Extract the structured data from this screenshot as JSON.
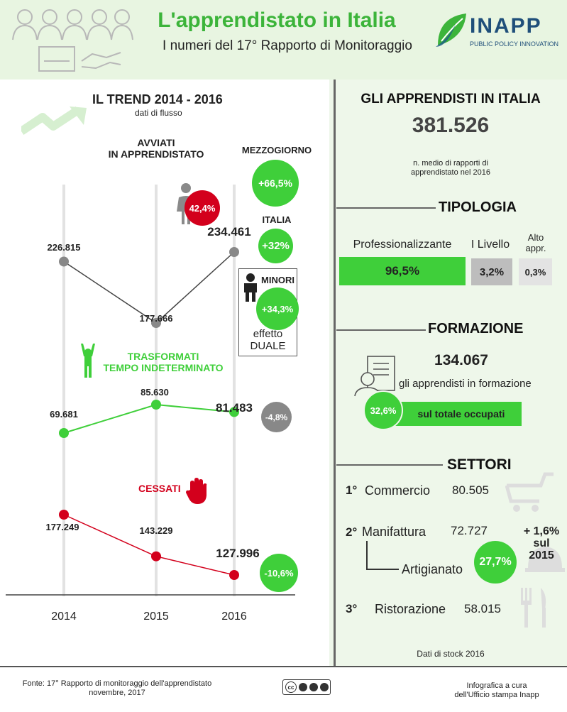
{
  "header": {
    "title": "L'apprendistato in Italia",
    "subtitle": "I numeri del 17° Rapporto di Monitoraggio",
    "logo_text": "INAPP",
    "logo_tag": "PUBLIC POLICY INNOVATION"
  },
  "trend": {
    "title": "IL TREND 2014 - 2016",
    "subtitle": "dati di flusso",
    "years": [
      "2014",
      "2015",
      "2016"
    ],
    "avviati": {
      "label_line1": "AVVIATI",
      "label_line2": "IN APPRENDISTATO",
      "values": [
        "226.815",
        "177.666",
        "234.461"
      ],
      "female_pct": "42,4%"
    },
    "mezzogiorno": {
      "label": "MEZZOGIORNO",
      "value": "+66,5%"
    },
    "italia": {
      "label": "ITALIA",
      "value": "+32%"
    },
    "minori": {
      "label": "MINORI",
      "value": "+34,3%",
      "note_line1": "effetto",
      "note_line2": "DUALE"
    },
    "trasformati": {
      "label_line1": "TRASFORMATI",
      "label_line2": "TEMPO INDETERMINATO",
      "values": [
        "69.681",
        "85.630",
        "81.483"
      ],
      "change": "-4,8%"
    },
    "cessati": {
      "label": "CESSATI",
      "values": [
        "177.249",
        "143.229",
        "127.996"
      ],
      "change": "-10,6%"
    }
  },
  "apprendisti": {
    "title": "GLI APPRENDISTI IN ITALIA",
    "total": "381.526",
    "note_line1": "n. medio di rapporti di",
    "note_line2": "apprendistato nel 2016"
  },
  "tipologia": {
    "title": "TIPOLOGIA",
    "items": [
      {
        "label": "Professionalizzante",
        "value": "96,5%",
        "color": "#3fcf3a"
      },
      {
        "label": "I Livello",
        "value": "3,2%",
        "color": "#bdbdbd"
      },
      {
        "label_line1": "Alto",
        "label_line2": "appr.",
        "value": "0,3%",
        "color": "#e3e3e3"
      }
    ]
  },
  "formazione": {
    "title": "FORMAZIONE",
    "value": "134.067",
    "desc": "gli apprendisti in formazione",
    "pct": "32,6%",
    "bar_label": "sul totale occupati"
  },
  "settori": {
    "title": "SETTORI",
    "items": [
      {
        "rank": "1°",
        "name": "Commercio",
        "value": "80.505"
      },
      {
        "rank": "2°",
        "name": "Manifattura",
        "value": "72.727",
        "change_line1": "+ 1,6%",
        "change_line2": "sul",
        "change_line3": "2015"
      },
      {
        "rank": "3°",
        "name": "Ristorazione",
        "value": "58.015"
      }
    ],
    "artigianato": {
      "name": "Artigianato",
      "pct": "27,7%"
    },
    "stock_note": "Dati di stock 2016"
  },
  "footer": {
    "source_line1": "Fonte: 17° Rapporto di monitoraggio dell'apprendistato",
    "source_line2": "novembre, 2017",
    "credit_line1": "Infografica a cura",
    "credit_line2": "dell'Ufficio stampa Inapp",
    "license": "cc"
  },
  "colors": {
    "green": "#3fcf3a",
    "red": "#d3001c",
    "grey": "#888888",
    "header_bg": "#e8f5e1",
    "panel_bg": "#eef7ea"
  }
}
